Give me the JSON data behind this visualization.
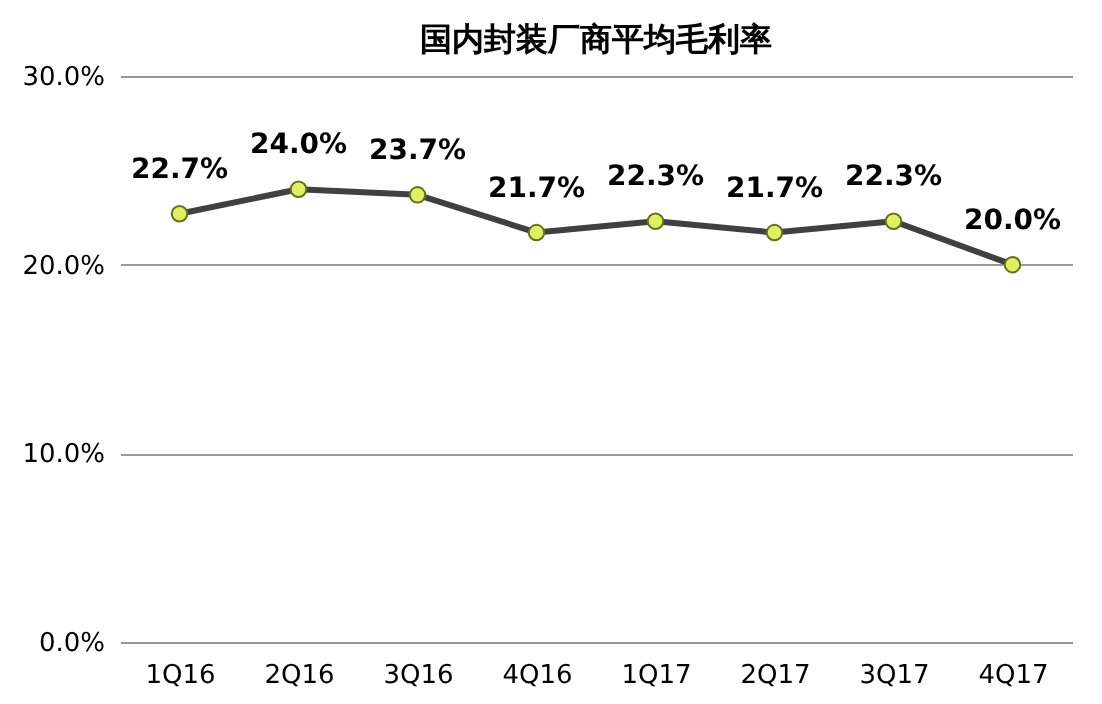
{
  "chart_data": {
    "type": "line",
    "title": "国内封装厂商平均毛利率",
    "categories": [
      "1Q16",
      "2Q16",
      "3Q16",
      "4Q16",
      "1Q17",
      "2Q17",
      "3Q17",
      "4Q17"
    ],
    "series": [
      {
        "color": "#404040",
        "values": [
          22.7,
          24.0,
          23.7,
          21.7,
          22.3,
          21.7,
          22.3,
          20.0
        ],
        "value_labels": [
          "22.7%",
          "24.0%",
          "23.7%",
          "21.7%",
          "22.3%",
          "21.7%",
          "22.3%",
          "20.0%"
        ]
      }
    ],
    "ylim": [
      0,
      30
    ],
    "yticks": [
      {
        "value": 0,
        "label": "0.0%"
      },
      {
        "value": 10,
        "label": "10.0%"
      },
      {
        "value": 20,
        "label": "20.0%"
      },
      {
        "value": 30,
        "label": "30.0%"
      }
    ],
    "grid": "y",
    "marker": "circle",
    "line_style": "solid"
  }
}
